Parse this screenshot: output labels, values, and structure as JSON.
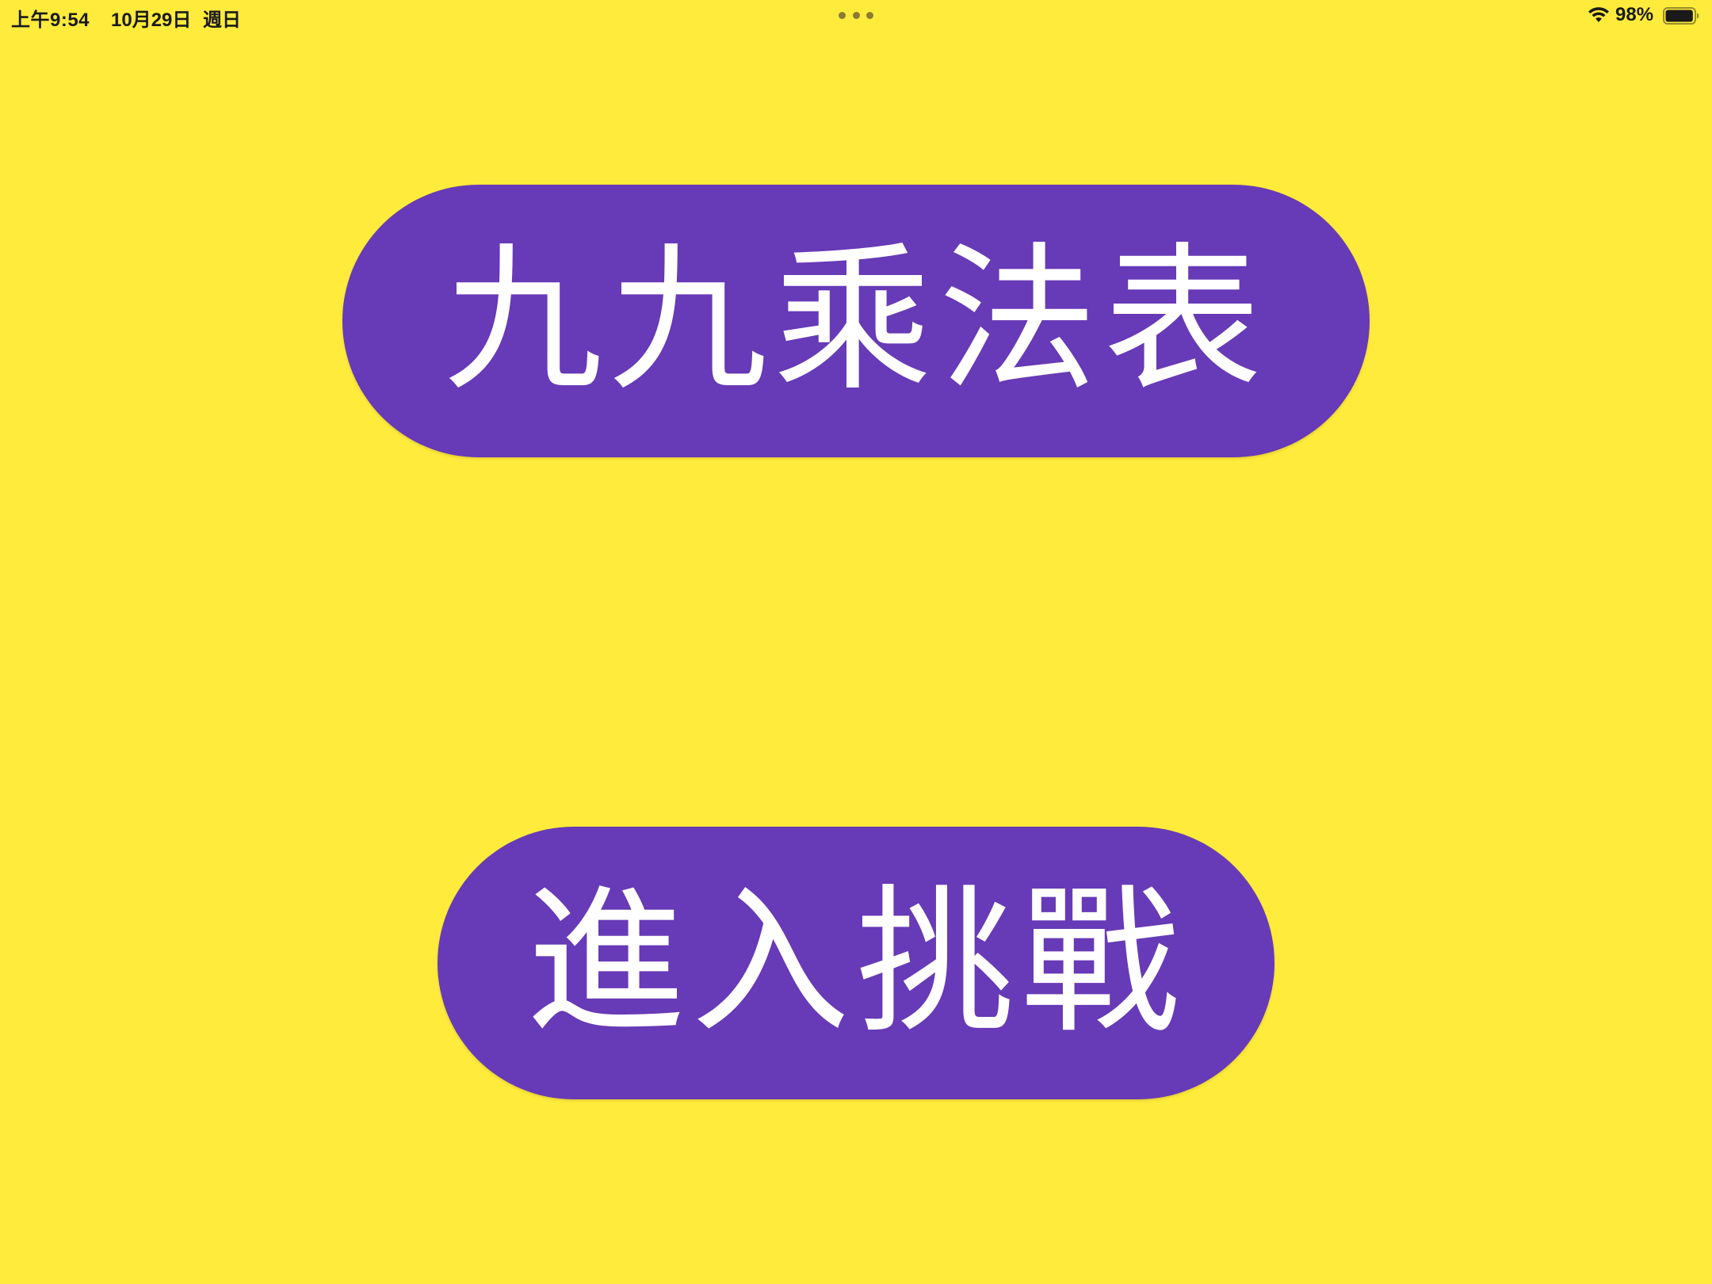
{
  "colors": {
    "background": "#ffeb3b",
    "button": "#673ab7",
    "button_text": "#ffffff",
    "status_text": "#1a1a1a",
    "dots": "#8a7a32"
  },
  "status_bar": {
    "time": "上午9:54",
    "date": "10月29日",
    "day": "週日",
    "battery": "98%",
    "battery_level": 0.98,
    "icons": [
      "more-dots-icon",
      "wifi-icon",
      "battery-icon"
    ]
  },
  "main": {
    "table_button_label": "九九乘法表",
    "challenge_button_label": "進入挑戰"
  }
}
